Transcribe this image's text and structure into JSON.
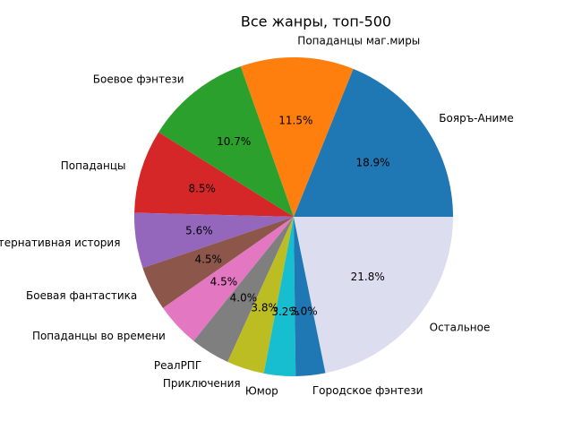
{
  "chart_data": {
    "type": "pie",
    "title": "Все жанры, топ-500",
    "categories": [
      "Бояръ-Аниме",
      "Попаданцы маг.миры",
      "Боевое фэнтези",
      "Попаданцы",
      "Альтернативная история",
      "Боевая фантастика",
      "Попаданцы во времени",
      "РеалРПГ",
      "Приключения",
      "Юмор",
      "Городское фэнтези",
      "Остальное"
    ],
    "values": [
      18.9,
      11.5,
      10.7,
      8.5,
      5.6,
      4.5,
      4.5,
      4.0,
      3.8,
      3.2,
      3.0,
      21.8
    ],
    "value_labels": [
      "18.9%",
      "11.5%",
      "10.7%",
      "8.5%",
      "5.6%",
      "4.5%",
      "4.5%",
      "4.0%",
      "3.8%",
      "3.2%",
      "3.0%",
      "21.8%"
    ],
    "colors": [
      "#1f77b4",
      "#ff7f0e",
      "#2ca02c",
      "#d62728",
      "#9467bd",
      "#8c564b",
      "#e377c2",
      "#7f7f7f",
      "#bcbd22",
      "#17becf",
      "#1f77b4",
      "#dcdef0"
    ]
  }
}
